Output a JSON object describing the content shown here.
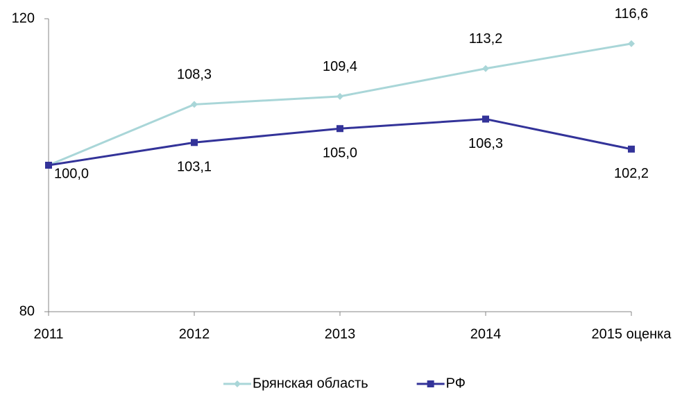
{
  "chart_data": {
    "type": "line",
    "categories": [
      "2011",
      "2012",
      "2013",
      "2014",
      "2015 оценка"
    ],
    "series": [
      {
        "name": "Брянская область",
        "color": "#a9d6d8",
        "marker": "diamond",
        "values": [
          100.0,
          108.3,
          109.4,
          113.2,
          116.6
        ],
        "value_labels": [
          null,
          "108,3",
          "109,4",
          "113,2",
          "116,6"
        ]
      },
      {
        "name": "РФ",
        "color": "#333399",
        "marker": "square",
        "values": [
          100.0,
          103.1,
          105.0,
          106.3,
          102.2
        ],
        "value_labels": [
          "100,0",
          "103,1",
          "105,0",
          "106,3",
          "102,2"
        ]
      }
    ],
    "ylim": [
      80,
      120
    ],
    "yticks": [
      80,
      120
    ],
    "grid": false,
    "legend": "bottom"
  }
}
